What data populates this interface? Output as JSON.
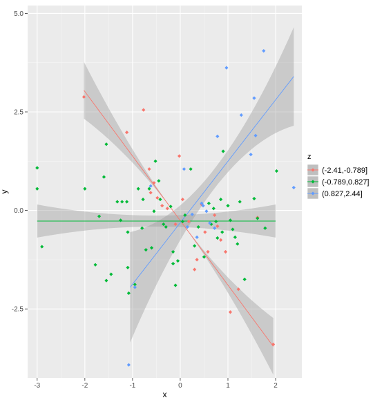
{
  "chart_data": {
    "type": "scatter",
    "title": "",
    "xlabel": "x",
    "ylabel": "y",
    "xlim": [
      -3.2,
      2.55
    ],
    "ylim": [
      -4.25,
      5.2
    ],
    "x_ticks": [
      -3,
      -2,
      -1,
      0,
      1,
      2
    ],
    "x_tick_labels": [
      "-3",
      "-2",
      "-1",
      "0",
      "1",
      "2"
    ],
    "y_ticks": [
      -2.5,
      0.0,
      2.5,
      5.0
    ],
    "y_tick_labels": [
      "-2.5",
      "0.0",
      "2.5",
      "5.0"
    ],
    "grid": true,
    "legend": {
      "title": "z",
      "position": "right"
    },
    "series": [
      {
        "name": "(-2.41,-0.789]",
        "color": "#F8766D",
        "fit": {
          "x": [
            -2.02,
            1.95
          ],
          "y": [
            3.05,
            -3.45
          ],
          "se_halfwidth": [
            0.72,
            0.0,
            0.72
          ]
        },
        "points": [
          [
            -2.02,
            2.88
          ],
          [
            -1.12,
            1.98
          ],
          [
            -0.77,
            2.55
          ],
          [
            -0.65,
            1.05
          ],
          [
            -0.55,
            0.7
          ],
          [
            -0.62,
            0.45
          ],
          [
            -0.48,
            0.32
          ],
          [
            -0.38,
            0.12
          ],
          [
            -0.27,
            0.05
          ],
          [
            -0.02,
            1.38
          ],
          [
            0.05,
            0.28
          ],
          [
            0.18,
            -0.28
          ],
          [
            0.35,
            -1.25
          ],
          [
            0.52,
            -0.55
          ],
          [
            0.58,
            -1.05
          ],
          [
            0.72,
            -0.12
          ],
          [
            0.78,
            -0.4
          ],
          [
            0.85,
            -0.75
          ],
          [
            0.95,
            -1.05
          ],
          [
            1.05,
            -2.58
          ],
          [
            1.22,
            -2.0
          ],
          [
            1.62,
            -0.18
          ],
          [
            1.95,
            -3.4
          ],
          [
            0.3,
            -1.5
          ],
          [
            -0.1,
            -0.35
          ],
          [
            0.45,
            0.15
          ]
        ]
      },
      {
        "name": "(-0.789,0.827]",
        "color": "#00BA38",
        "fit": {
          "x": [
            -3.0,
            2.0
          ],
          "y": [
            -0.27,
            -0.27
          ],
          "se_halfwidth": [
            0.42,
            0.14,
            0.42
          ]
        },
        "points": [
          [
            -3.0,
            1.08
          ],
          [
            -3.0,
            0.55
          ],
          [
            -2.9,
            -0.92
          ],
          [
            -2.0,
            0.55
          ],
          [
            -1.78,
            -1.38
          ],
          [
            -1.7,
            -0.15
          ],
          [
            -1.6,
            0.85
          ],
          [
            -1.55,
            1.68
          ],
          [
            -1.55,
            -1.78
          ],
          [
            -1.45,
            -1.62
          ],
          [
            -1.32,
            0.22
          ],
          [
            -1.25,
            -0.25
          ],
          [
            -1.12,
            0.22
          ],
          [
            -1.1,
            -0.55
          ],
          [
            -1.1,
            -1.45
          ],
          [
            -1.08,
            -2.1
          ],
          [
            -0.95,
            -1.88
          ],
          [
            -0.8,
            -0.45
          ],
          [
            -0.78,
            0.28
          ],
          [
            -0.72,
            -1.0
          ],
          [
            -0.65,
            0.55
          ],
          [
            -0.6,
            -0.95
          ],
          [
            -0.55,
            -0.02
          ],
          [
            -0.52,
            1.25
          ],
          [
            -0.45,
            0.75
          ],
          [
            -0.42,
            0.28
          ],
          [
            -0.35,
            -0.35
          ],
          [
            -0.3,
            -0.42
          ],
          [
            -0.2,
            0.1
          ],
          [
            -0.15,
            -1.05
          ],
          [
            -0.15,
            -1.35
          ],
          [
            -0.1,
            -1.9
          ],
          [
            -0.05,
            -1.28
          ],
          [
            0.05,
            -0.28
          ],
          [
            0.1,
            -0.12
          ],
          [
            0.22,
            1.05
          ],
          [
            0.3,
            -0.9
          ],
          [
            0.38,
            -0.42
          ],
          [
            0.5,
            -1.18
          ],
          [
            0.6,
            0.18
          ],
          [
            0.65,
            -0.35
          ],
          [
            0.7,
            0.05
          ],
          [
            0.75,
            -0.28
          ],
          [
            0.78,
            -0.7
          ],
          [
            0.85,
            0.28
          ],
          [
            0.88,
            -0.55
          ],
          [
            0.9,
            1.5
          ],
          [
            1.0,
            0.12
          ],
          [
            1.05,
            -0.25
          ],
          [
            1.1,
            -0.48
          ],
          [
            1.15,
            -0.68
          ],
          [
            1.2,
            -0.85
          ],
          [
            1.25,
            0.22
          ],
          [
            1.35,
            -1.75
          ],
          [
            1.55,
            0.3
          ],
          [
            1.62,
            -0.2
          ],
          [
            1.78,
            -0.45
          ],
          [
            2.02,
            1.0
          ],
          [
            -1.22,
            0.22
          ],
          [
            -0.88,
            0.55
          ]
        ]
      },
      {
        "name": "(0.827,2.44]",
        "color": "#619CFF",
        "fit": {
          "x": [
            -1.05,
            2.38
          ],
          "y": [
            -1.95,
            3.4
          ],
          "se_halfwidth": [
            1.4,
            0.25,
            1.25
          ]
        },
        "points": [
          [
            -1.08,
            -3.92
          ],
          [
            -0.95,
            -1.95
          ],
          [
            -0.62,
            0.62
          ],
          [
            0.08,
            1.05
          ],
          [
            0.45,
            0.18
          ],
          [
            0.48,
            0.12
          ],
          [
            0.55,
            -0.02
          ],
          [
            0.62,
            -0.32
          ],
          [
            0.72,
            -0.45
          ],
          [
            0.78,
            1.88
          ],
          [
            0.97,
            3.62
          ],
          [
            1.28,
            2.42
          ],
          [
            1.48,
            1.42
          ],
          [
            1.55,
            2.85
          ],
          [
            1.58,
            1.9
          ],
          [
            1.75,
            4.05
          ],
          [
            2.38,
            0.58
          ],
          [
            0.35,
            -0.68
          ],
          [
            0.25,
            -0.1
          ],
          [
            0.15,
            -0.42
          ]
        ]
      }
    ]
  }
}
